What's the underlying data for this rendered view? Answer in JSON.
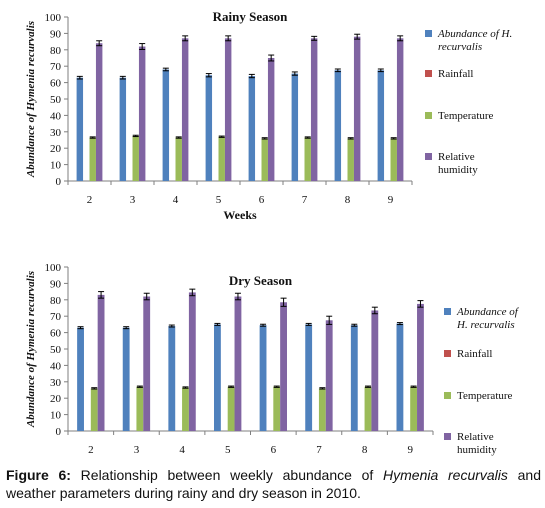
{
  "chart_data": [
    {
      "type": "bar",
      "title": "Rainy Season",
      "xlabel": "Weeks",
      "ylabel": "Abundance of Hymenia recurvalis",
      "ylim": [
        0,
        100
      ],
      "yticks": [
        0,
        10,
        20,
        30,
        40,
        50,
        60,
        70,
        80,
        90,
        100
      ],
      "categories": [
        "2",
        "3",
        "4",
        "5",
        "6",
        "7",
        "8",
        "9"
      ],
      "legend_position": "right",
      "grid": false,
      "series": [
        {
          "name": "Abundance of H. recurvalis",
          "legend_lines": [
            "Abundance of H.",
            "recurvalis"
          ],
          "italic": true,
          "color": "#4F81BD",
          "values": [
            63,
            63,
            68,
            64.5,
            64,
            65.5,
            67.5,
            67.5
          ],
          "errors": [
            0.8,
            0.8,
            0.8,
            1.0,
            1.0,
            1.0,
            0.8,
            0.8
          ]
        },
        {
          "name": "Rainfall",
          "legend_lines": [
            "Rainfall"
          ],
          "italic": false,
          "color": "#C0504D",
          "values": [
            0,
            0,
            0,
            0,
            0,
            0,
            0,
            0
          ],
          "errors": [
            0,
            0,
            0,
            0,
            0,
            0,
            0,
            0
          ]
        },
        {
          "name": "Temperature",
          "legend_lines": [
            "Temperature"
          ],
          "italic": false,
          "color": "#9BBB59",
          "values": [
            26.5,
            27.5,
            26.5,
            27,
            26,
            26.5,
            26,
            26
          ],
          "errors": [
            0.4,
            0.4,
            0.4,
            0.4,
            0.4,
            0.4,
            0.4,
            0.4
          ]
        },
        {
          "name": "Relative humidity",
          "legend_lines": [
            "Relative",
            "humidity"
          ],
          "italic": false,
          "color": "#8064A2",
          "values": [
            84,
            82,
            87,
            87,
            75,
            87,
            88,
            87
          ],
          "errors": [
            1.5,
            1.8,
            1.5,
            1.5,
            1.8,
            1.2,
            1.5,
            1.5
          ]
        }
      ]
    },
    {
      "type": "bar",
      "title": "Dry Season",
      "xlabel": "",
      "ylabel": "Abundance of Hymenia recurvalis",
      "ylim": [
        0,
        100
      ],
      "yticks": [
        0,
        10,
        20,
        30,
        40,
        50,
        60,
        70,
        80,
        90,
        100
      ],
      "categories": [
        "2",
        "3",
        "4",
        "5",
        "6",
        "7",
        "8",
        "9"
      ],
      "legend_position": "right",
      "grid": false,
      "series": [
        {
          "name": "Abundance of H. recurvalis",
          "legend_lines": [
            "Abundance of",
            "H. recurvalis"
          ],
          "italic": true,
          "color": "#4F81BD",
          "values": [
            63,
            63,
            64,
            65,
            64.5,
            65,
            64.5,
            65.5
          ],
          "errors": [
            0.6,
            0.6,
            0.6,
            0.6,
            0.6,
            0.6,
            0.6,
            0.6
          ]
        },
        {
          "name": "Rainfall",
          "legend_lines": [
            "Rainfall"
          ],
          "italic": false,
          "color": "#C0504D",
          "values": [
            0,
            0,
            0,
            0,
            0,
            0,
            0,
            0
          ],
          "errors": [
            0,
            0,
            0,
            0,
            0,
            0,
            0,
            0
          ]
        },
        {
          "name": "Temperature",
          "legend_lines": [
            "Temperature"
          ],
          "italic": false,
          "color": "#9BBB59",
          "values": [
            26,
            27,
            26.5,
            27,
            27,
            26,
            27,
            27
          ],
          "errors": [
            0.4,
            0.4,
            0.4,
            0.4,
            0.4,
            0.4,
            0.4,
            0.4
          ]
        },
        {
          "name": "Relative humidity",
          "legend_lines": [
            "Relative",
            "humidity"
          ],
          "italic": false,
          "color": "#8064A2",
          "values": [
            83,
            82,
            84.5,
            82,
            78.5,
            67.5,
            73.5,
            77.5
          ],
          "errors": [
            2,
            2,
            2,
            2,
            2.5,
            2.5,
            2,
            2
          ]
        }
      ]
    }
  ],
  "caption": {
    "label": "Figure 6:",
    "text_before": " Relationship between weekly abundance of ",
    "species": "Hymenia recurvalis",
    "text_after": " and weather parameters during rainy and dry season in 2010."
  }
}
